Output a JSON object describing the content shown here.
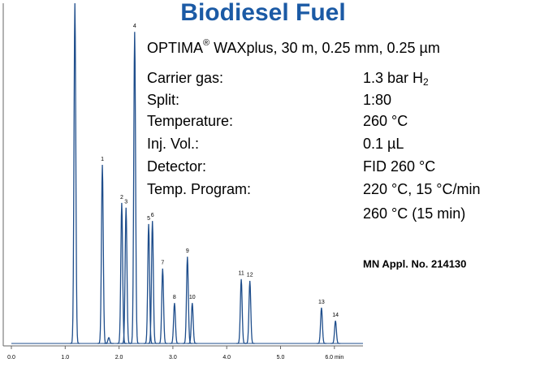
{
  "chart_data": {
    "type": "chromatogram",
    "title": "Biodiesel Fuel",
    "column": [
      "OPTIMA",
      "®",
      " WAXplus, 30 m, 0.25 mm, 0.25 µm"
    ],
    "conditions": [
      {
        "label": "Carrier gas:",
        "value": [
          "1.3 bar H",
          "2"
        ]
      },
      {
        "label": "Split:",
        "value": [
          "1:80"
        ]
      },
      {
        "label": "Temperature:",
        "value": [
          "260 °C"
        ]
      },
      {
        "label": "Inj. Vol.:",
        "value": [
          "0.1 µL"
        ]
      },
      {
        "label": "Detector:",
        "value": [
          "FID 260 °C"
        ]
      },
      {
        "label": "Temp. Program:",
        "value": [
          "220 °C, 15 °C/min",
          "260 °C (15 min)"
        ]
      }
    ],
    "application": "MN Appl. No. 214130",
    "color": "#1f4e8c",
    "x": [
      1.18,
      1.81,
      1.69,
      2.05,
      2.13,
      2.29,
      2.55,
      2.62,
      2.81,
      3.03,
      3.27,
      3.36,
      4.27,
      4.43,
      5.76,
      6.02
    ],
    "values": [
      100,
      1.7,
      52.5,
      41.3,
      39.9,
      91.6,
      35.1,
      36.0,
      22.0,
      11.9,
      25.5,
      11.9,
      18.9,
      18.4,
      10.5,
      6.7
    ],
    "peak_labels": [
      null,
      null,
      "1",
      "2",
      "3",
      "4",
      "5",
      "6",
      "7",
      "8",
      "9",
      "10",
      "11",
      "12",
      "13",
      "14"
    ],
    "xlim": [
      0,
      6.53
    ],
    "ylim": [
      0,
      100
    ],
    "xticks": [
      {
        "value": 0,
        "label": "0.0"
      },
      {
        "value": 1,
        "label": "1.0"
      },
      {
        "value": 2,
        "label": "2.0"
      },
      {
        "value": 3,
        "label": "3.0"
      },
      {
        "value": 4,
        "label": "4.0"
      },
      {
        "value": 5,
        "label": "5.0"
      },
      {
        "value": 6,
        "label": "6.0 min"
      }
    ]
  }
}
